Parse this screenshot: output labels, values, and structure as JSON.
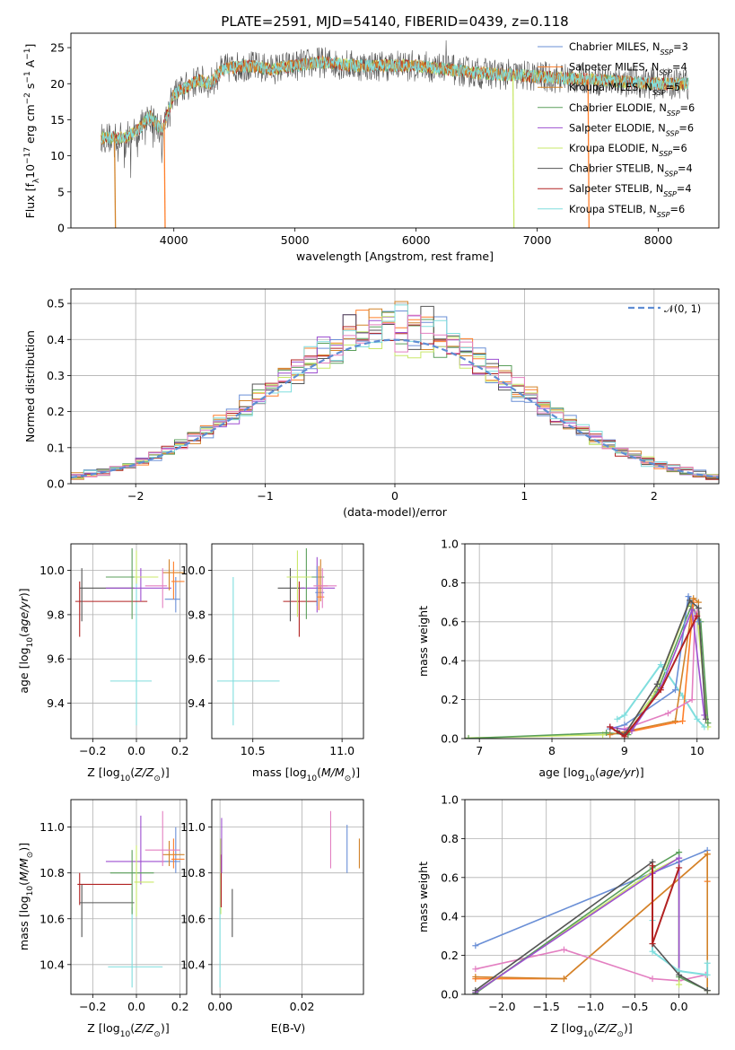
{
  "title": "PLATE=2591, MJD=54140, FIBERID=0439, z=0.118",
  "colors": {
    "chabrier_miles": "#6a8fd6",
    "salpeter_miles": "#ff7f2a",
    "kroupa_miles": "#d2832a",
    "chabrier_elodie": "#5b9f5b",
    "salpeter_elodie": "#9d4fd0",
    "kroupa_elodie": "#c9e86a",
    "chabrier_stelib": "#555555",
    "salpeter_stelib": "#b22222",
    "kroupa_stelib": "#80dede",
    "pink": "#e37fc1",
    "normal": "#5f8dd3"
  },
  "chart_data": [
    {
      "id": "spectrum",
      "type": "line",
      "xlabel": "wavelength [Angstrom, rest frame]",
      "ylabel": "Flux [f_λ10^-17 erg cm^-2 s^-1 A^-1]",
      "xlim": [
        3150,
        8500
      ],
      "ylim": [
        0,
        27
      ],
      "xticks": [
        "4000",
        "5000",
        "6000",
        "7000",
        "8000"
      ],
      "yticks": [
        "0",
        "5",
        "10",
        "15",
        "20",
        "25"
      ],
      "legend": "right",
      "legend_entries": [
        {
          "label": "Chabrier MILES, N",
          "sub": "SSP",
          "suffix": "=3",
          "color": "#6a8fd6"
        },
        {
          "label": "Salpeter MILES, N",
          "sub": "SSP",
          "suffix": "=4",
          "color": "#ff7f2a"
        },
        {
          "label": "Kroupa MILES, N",
          "sub": "SSP",
          "suffix": "=5",
          "color": "#d2832a"
        },
        {
          "label": "Chabrier ELODIE, N",
          "sub": "SSP",
          "suffix": "=6",
          "color": "#5b9f5b"
        },
        {
          "label": "Salpeter ELODIE, N",
          "sub": "SSP",
          "suffix": "=6",
          "color": "#9d4fd0"
        },
        {
          "label": "Kroupa ELODIE, N",
          "sub": "SSP",
          "suffix": "=6",
          "color": "#c9e86a"
        },
        {
          "label": "Chabrier STELIB, N",
          "sub": "SSP",
          "suffix": "=4",
          "color": "#555555"
        },
        {
          "label": "Salpeter STELIB, N",
          "sub": "SSP",
          "suffix": "=4",
          "color": "#b22222"
        },
        {
          "label": "Kroupa STELIB, N",
          "sub": "SSP",
          "suffix": "=6",
          "color": "#80dede"
        }
      ],
      "continuum": {
        "x": [
          3400,
          3500,
          3600,
          3700,
          3800,
          3900,
          4000,
          4100,
          4200,
          4300,
          4400,
          4600,
          4800,
          5000,
          5200,
          5500,
          6000,
          6500,
          7000,
          7500,
          8000,
          8250
        ],
        "y": [
          12.5,
          12.5,
          12.5,
          13.5,
          15.5,
          13.5,
          18.5,
          19.5,
          20.5,
          20.0,
          22.0,
          22.5,
          22.0,
          22.5,
          23.0,
          22.5,
          22.5,
          21.5,
          21.0,
          20.5,
          20.0,
          20.0
        ]
      },
      "drops": [
        {
          "x": 3510,
          "color": "#d2832a"
        },
        {
          "x": 3920,
          "color": "#ff7f2a"
        },
        {
          "x": 6800,
          "color": "#c9e86a"
        },
        {
          "x": 7420,
          "color": "#ff7f2a"
        }
      ]
    },
    {
      "id": "residuals",
      "type": "bar",
      "xlabel": "(data-model)/error",
      "ylabel": "Normed distribution",
      "xlim": [
        -2.5,
        2.5
      ],
      "ylim": [
        0,
        0.54
      ],
      "xticks": [
        "-2",
        "-1",
        "0",
        "1",
        "2"
      ],
      "yticks": [
        "0.0",
        "0.1",
        "0.2",
        "0.3",
        "0.4",
        "0.5"
      ],
      "legend": "top-right",
      "legend_label": "𝒩(0, 1)",
      "note": "step histograms of residuals, one per fit, with a dashed standard normal curve"
    },
    {
      "id": "age-vs-Z",
      "type": "scatter",
      "xlabel": "Z [log10(Z/Z⊙)]",
      "ylabel": "age  [log10(age/yr)]",
      "xlim": [
        -0.3,
        0.23
      ],
      "ylim": [
        9.24,
        10.12
      ],
      "xticks": [
        "-0.2",
        "0.0",
        "0.2"
      ],
      "yticks": [
        "9.4",
        "9.6",
        "9.8",
        "10.0"
      ]
    },
    {
      "id": "age-vs-mass",
      "type": "scatter",
      "xlabel": "mass [log10(M/M⊙)]",
      "xlim": [
        10.27,
        11.12
      ],
      "ylim": [
        9.24,
        10.12
      ],
      "xticks": [
        "10.5",
        "11.0"
      ],
      "yticks": [
        "9.4",
        "9.6",
        "9.8",
        "10.0"
      ]
    },
    {
      "id": "massweight-vs-age",
      "type": "line",
      "xlabel": "age  [log10(age/yr)]",
      "ylabel": "mass weight",
      "xlim": [
        6.8,
        10.3
      ],
      "ylim": [
        0,
        1.0
      ],
      "xticks": [
        "7",
        "8",
        "9",
        "10"
      ],
      "yticks": [
        "0.0",
        "0.2",
        "0.4",
        "0.6",
        "0.8",
        "1.0"
      ]
    },
    {
      "id": "mass-vs-Z",
      "type": "scatter",
      "xlabel": "Z [log10(Z/Z⊙)]",
      "ylabel": "mass [log10(M/M⊙)]",
      "xlim": [
        -0.3,
        0.23
      ],
      "ylim": [
        10.27,
        11.12
      ],
      "xticks": [
        "-0.2",
        "0.0",
        "0.2"
      ],
      "yticks": [
        "10.4",
        "10.6",
        "10.8",
        "11.0"
      ]
    },
    {
      "id": "mass-vs-EBV",
      "type": "scatter",
      "xlabel": "E(B-V)",
      "xlim": [
        -0.002,
        0.035
      ],
      "ylim": [
        10.27,
        11.12
      ],
      "xticks": [
        "0.00",
        "0.02"
      ],
      "yticks": [
        "10.4",
        "10.6",
        "10.8",
        "11.0"
      ]
    },
    {
      "id": "massweight-vs-Z",
      "type": "line",
      "xlabel": "Z [log10(Z/Z⊙)]",
      "ylabel": "mass weight",
      "xlim": [
        -2.42,
        0.45
      ],
      "ylim": [
        0,
        1.0
      ],
      "xticks": [
        "-2.0",
        "-1.5",
        "-1.0",
        "-0.5",
        "0.0"
      ],
      "yticks": [
        "0.0",
        "0.2",
        "0.4",
        "0.6",
        "0.8",
        "1.0"
      ]
    }
  ]
}
